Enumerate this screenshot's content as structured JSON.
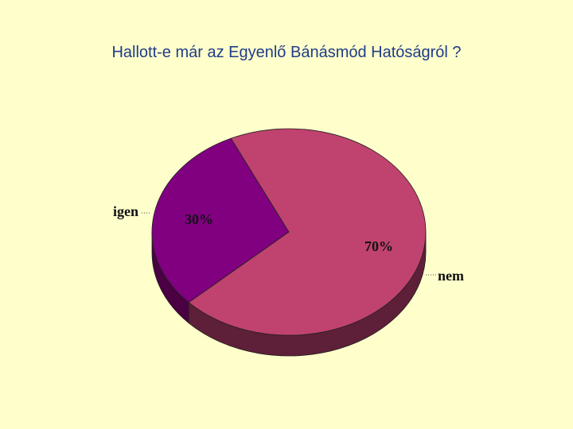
{
  "chart_data": {
    "type": "pie",
    "style": "3d",
    "title": "Hallott-e már az Egyenlő Bánásmód Hatóságról ?",
    "categories": [
      "igen",
      "nem"
    ],
    "values": [
      30,
      70
    ],
    "data_labels": [
      "30%",
      "70%"
    ],
    "colors": [
      "#800080",
      "#c0426e"
    ],
    "side_colors": [
      "#4a0042",
      "#5e1f38"
    ],
    "legend": "none"
  }
}
